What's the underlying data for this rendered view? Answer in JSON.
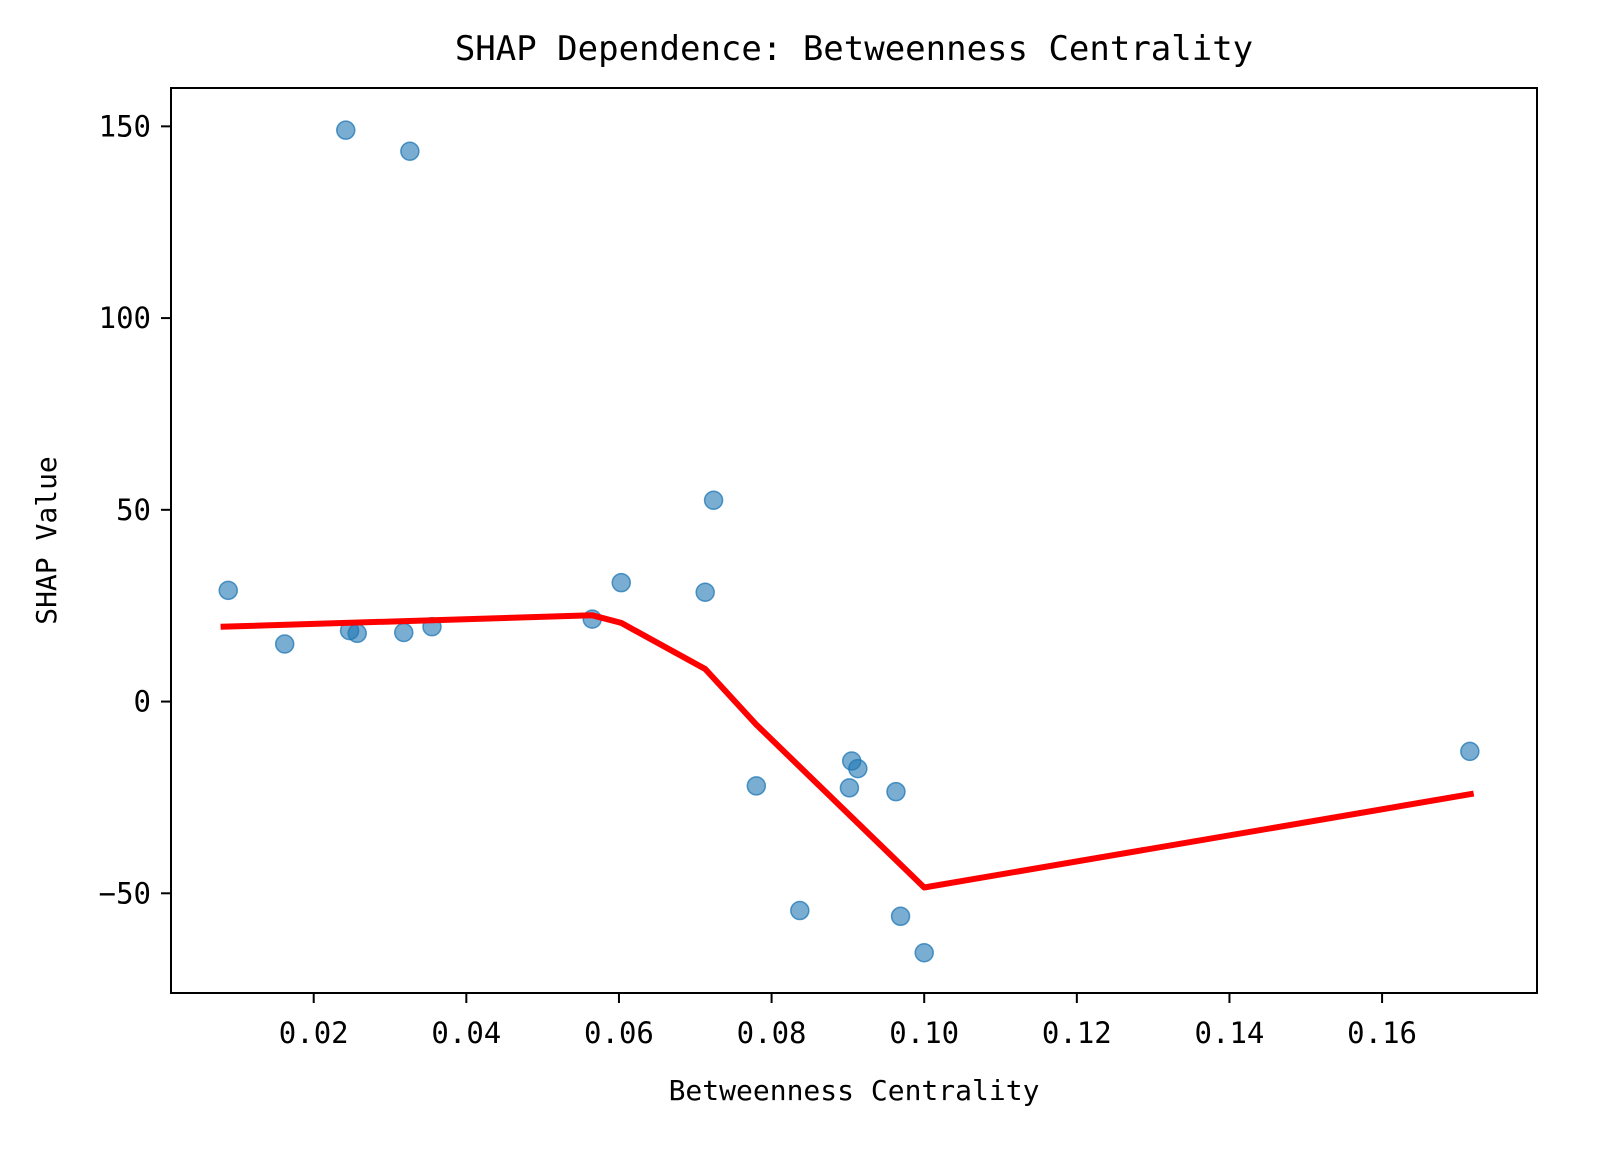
{
  "chart_data": {
    "type": "scatter",
    "title": "SHAP Dependence: Betweenness Centrality",
    "xlabel": "Betweenness Centrality",
    "ylabel": "SHAP Value",
    "xlim": [
      0.0013,
      0.1803
    ],
    "ylim": [
      -76,
      160
    ],
    "xticks": [
      0.02,
      0.04,
      0.06,
      0.08,
      0.1,
      0.12,
      0.14,
      0.16
    ],
    "xtick_labels": [
      "0.02",
      "0.04",
      "0.06",
      "0.08",
      "0.10",
      "0.12",
      "0.14",
      "0.16"
    ],
    "yticks": [
      150,
      100,
      50,
      0,
      -50
    ],
    "ytick_labels": [
      "150",
      "100",
      "50",
      "0",
      "−50"
    ],
    "grid": false,
    "series": [
      {
        "kind": "scatter",
        "color": "#1f77b4",
        "opacity": 0.6,
        "points": [
          {
            "x": 0.0088,
            "y": 29.0
          },
          {
            "x": 0.0162,
            "y": 15.0
          },
          {
            "x": 0.0242,
            "y": 149.0
          },
          {
            "x": 0.0247,
            "y": 18.5
          },
          {
            "x": 0.0257,
            "y": 17.8
          },
          {
            "x": 0.0318,
            "y": 18.0
          },
          {
            "x": 0.0326,
            "y": 143.5
          },
          {
            "x": 0.0355,
            "y": 19.5
          },
          {
            "x": 0.0565,
            "y": 21.5
          },
          {
            "x": 0.0603,
            "y": 31.0
          },
          {
            "x": 0.0713,
            "y": 28.5
          },
          {
            "x": 0.0724,
            "y": 52.5
          },
          {
            "x": 0.078,
            "y": -22.0
          },
          {
            "x": 0.0837,
            "y": -54.5
          },
          {
            "x": 0.0902,
            "y": -22.5
          },
          {
            "x": 0.0905,
            "y": -15.5
          },
          {
            "x": 0.0913,
            "y": -17.5
          },
          {
            "x": 0.0963,
            "y": -23.5
          },
          {
            "x": 0.0969,
            "y": -56.0
          },
          {
            "x": 0.1,
            "y": -65.5
          },
          {
            "x": 0.1715,
            "y": -13.0
          }
        ]
      },
      {
        "kind": "line",
        "color": "#ff0000",
        "points": [
          {
            "x": 0.0078,
            "y": 19.5
          },
          {
            "x": 0.0565,
            "y": 22.5
          },
          {
            "x": 0.0603,
            "y": 20.5
          },
          {
            "x": 0.0713,
            "y": 8.5
          },
          {
            "x": 0.078,
            "y": -6.0
          },
          {
            "x": 0.1,
            "y": -48.5
          },
          {
            "x": 0.172,
            "y": -24.0
          }
        ]
      }
    ]
  }
}
